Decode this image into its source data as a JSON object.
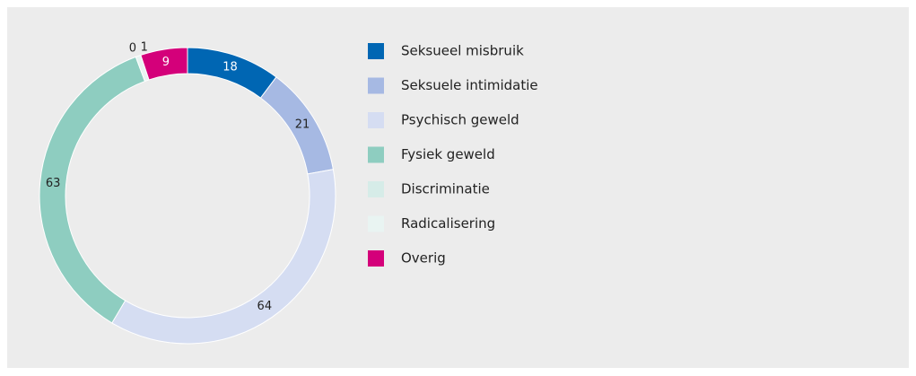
{
  "chart_data": {
    "type": "donut",
    "categories": [
      "Seksueel misbruik",
      "Seksuele intimidatie",
      "Psychisch geweld",
      "Fysiek geweld",
      "Discriminatie",
      "Radicalisering",
      "Overig"
    ],
    "values": [
      18,
      21,
      64,
      63,
      0,
      1,
      9
    ],
    "colors": [
      "#0066b3",
      "#a6b9e3",
      "#d5ddf2",
      "#8ecdc0",
      "#d6ece8",
      "#e9f4f2",
      "#d4007a"
    ],
    "legend": "right"
  }
}
